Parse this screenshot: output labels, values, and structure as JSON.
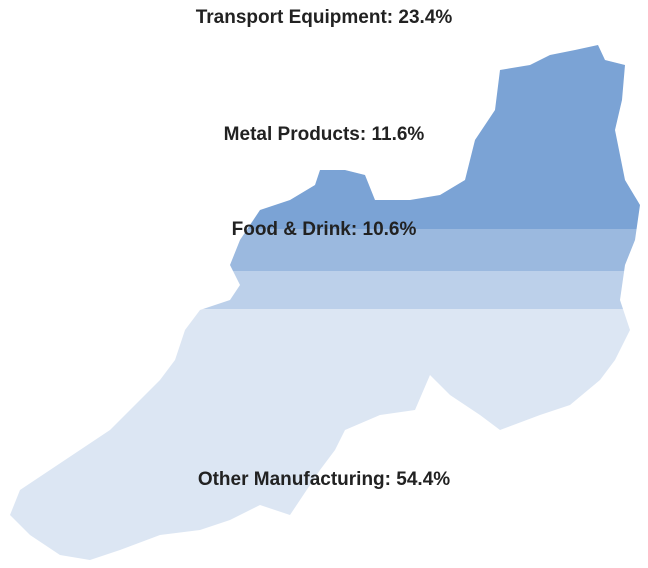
{
  "chart_data": {
    "type": "pictogram",
    "categories": [
      "Transport Equipment",
      "Metal Products",
      "Food & Drink",
      "Other Manufacturing"
    ],
    "values": [
      23.4,
      11.6,
      10.6,
      54.4
    ],
    "value_labels": [
      "23.4%",
      "11.6%",
      "10.6%",
      "54.4%"
    ],
    "colors": [
      "#7ba3d5",
      "#9bb9df",
      "#bcd0ea",
      "#dce6f3"
    ]
  }
}
